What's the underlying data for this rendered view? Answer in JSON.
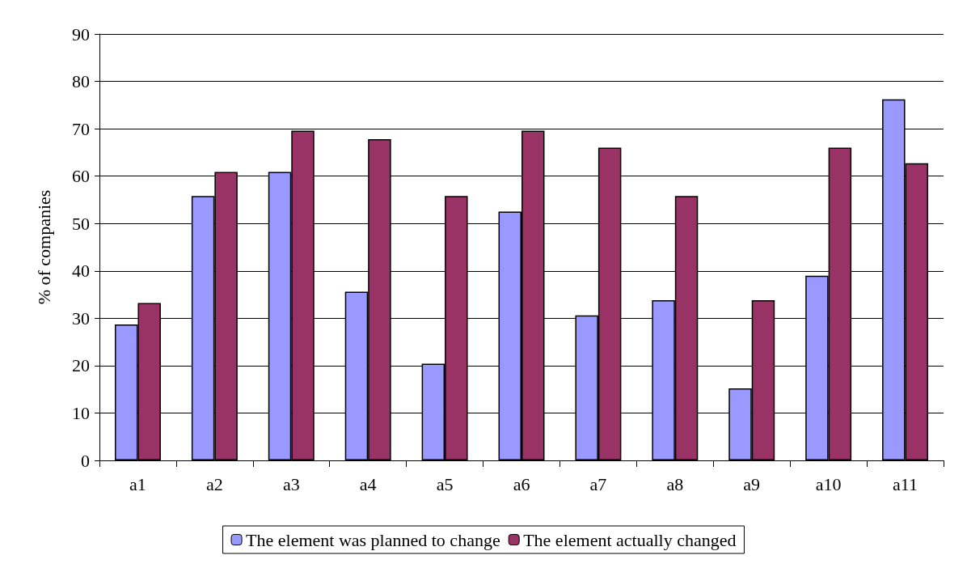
{
  "chart_data": {
    "type": "bar",
    "ylabel": "% of companies",
    "categories": [
      "a1",
      "a2",
      "a3",
      "a4",
      "a5",
      "a6",
      "a7",
      "a8",
      "a9",
      "a10",
      "a11"
    ],
    "series": [
      {
        "name": "The element was planned to change",
        "color": "#9999ff",
        "values": [
          28.7,
          55.8,
          60.9,
          35.6,
          20.4,
          52.5,
          30.6,
          33.8,
          15.2,
          39.0,
          76.2
        ]
      },
      {
        "name": "The element actually changed",
        "color": "#993366",
        "values": [
          33.2,
          60.9,
          69.6,
          67.8,
          55.8,
          69.6,
          66.0,
          55.8,
          33.8,
          66.0,
          62.7
        ]
      }
    ],
    "ylim": [
      0,
      90
    ],
    "yticks": [
      0,
      10,
      20,
      30,
      40,
      50,
      60,
      70,
      80,
      90
    ],
    "grid": "y",
    "legend": "bottom"
  }
}
